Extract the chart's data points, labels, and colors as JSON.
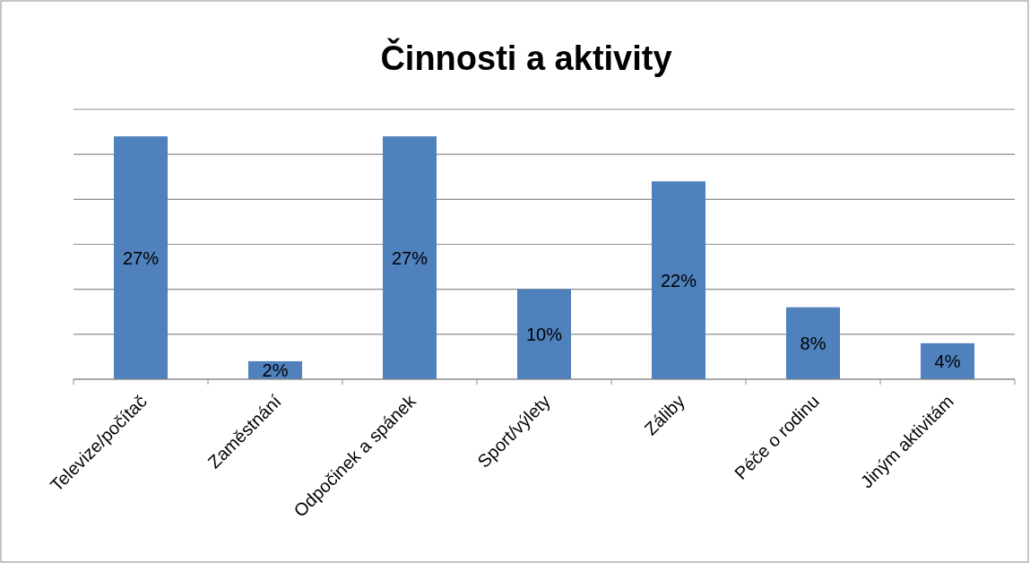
{
  "chart_data": {
    "type": "bar",
    "title": "Činnosti a aktivity",
    "categories": [
      "Televize/počítač",
      "Zaměstnání",
      "Odpočinek a spánek",
      "Sport/výlety",
      "Záliby",
      "Péče o rodinu",
      "Jiným aktivitám"
    ],
    "values": [
      27,
      2,
      27,
      10,
      22,
      8,
      4
    ],
    "value_labels": [
      "27%",
      "2%",
      "27%",
      "10%",
      "22%",
      "8%",
      "4%"
    ],
    "color": "#4f81bd",
    "ylim": [
      0,
      30
    ],
    "yticks": [
      {
        "value": 0,
        "label": null
      },
      {
        "value": 5,
        "label": null
      },
      {
        "value": 10,
        "label": null
      },
      {
        "value": 15,
        "label": null
      },
      {
        "value": 20,
        "label": null
      },
      {
        "value": 25,
        "label": null
      },
      {
        "value": 30,
        "label": null
      }
    ],
    "grid": "y",
    "tick_labels": "x"
  }
}
